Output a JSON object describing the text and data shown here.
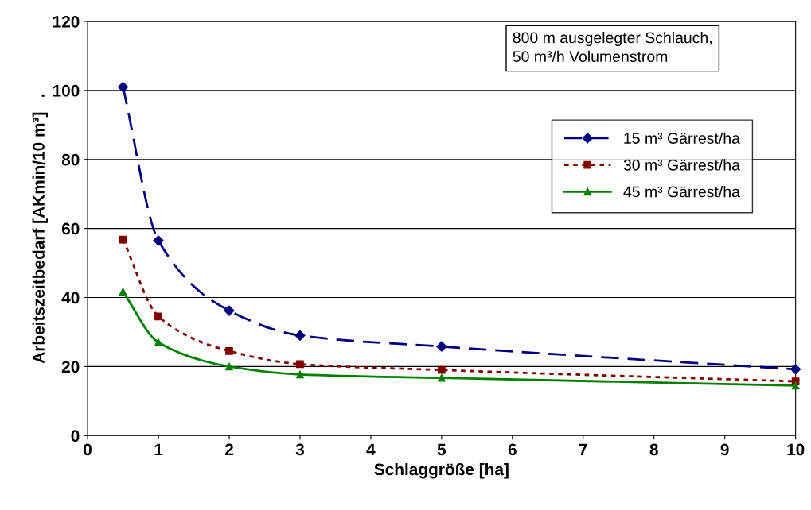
{
  "chart_data": {
    "type": "line",
    "xlabel": "Schlaggröße [ha]",
    "ylabel": "Arbeitszeitbedarf [AKmin/10 m³]   .",
    "annotations": [
      "800 m ausgelegter Schlauch,\n50 m³/h Volumenstrom"
    ],
    "x": [
      0.5,
      1,
      2,
      3,
      5,
      10
    ],
    "series": [
      {
        "name": "15 m³ Gärrest/ha",
        "color": "#000080",
        "marker": "diamond",
        "line_style": "dashed",
        "values": [
          101,
          56.5,
          36.2,
          29,
          25.8,
          19.2
        ]
      },
      {
        "name": "30 m³ Gärrest/ha",
        "color": "#800000",
        "marker": "square",
        "line_style": "dotted",
        "values": [
          56.8,
          34.5,
          24.5,
          20.7,
          19,
          15.7
        ]
      },
      {
        "name": "45 m³ Gärrest/ha",
        "color": "#008000",
        "marker": "triangle",
        "line_style": "solid",
        "values": [
          41.7,
          27,
          20,
          17.7,
          16.7,
          14.5
        ]
      }
    ],
    "xlim": [
      0,
      10
    ],
    "xticks": [
      0,
      1,
      2,
      3,
      4,
      5,
      6,
      7,
      8,
      9,
      10
    ],
    "ylim": [
      0,
      120
    ],
    "yticks": [
      0,
      20,
      40,
      60,
      80,
      100,
      120
    ],
    "grid": "y",
    "legend": "right"
  }
}
